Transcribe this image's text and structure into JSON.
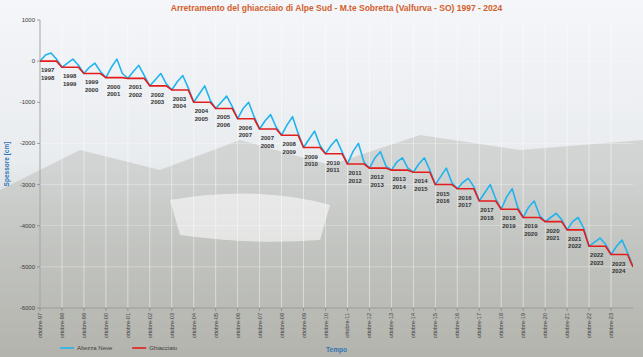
{
  "chart_data": {
    "type": "line",
    "title": "Arretramento del ghiacciaio di Alpe Sud - M.te Sobretta (Valfurva - SO) 1997 - 2024",
    "x_label": "Tempo",
    "y_label": "Spessore [cm]",
    "categories": [
      "ottobre-97",
      null,
      null,
      null,
      "ottobre-98",
      null,
      null,
      null,
      "ottobre-99",
      null,
      null,
      null,
      "ottobre-00",
      null,
      null,
      null,
      "ottobre-01",
      null,
      null,
      null,
      "ottobre-02",
      null,
      null,
      null,
      "ottobre-03",
      null,
      null,
      null,
      "ottobre-04",
      null,
      null,
      null,
      "ottobre-05",
      null,
      null,
      null,
      "ottobre-06",
      null,
      null,
      null,
      "ottobre-07",
      null,
      null,
      null,
      "ottobre-08",
      null,
      null,
      null,
      "ottobre-09",
      null,
      null,
      null,
      "ottobre-10",
      null,
      null,
      null,
      "ottobre-11",
      null,
      null,
      null,
      "ottobre-12",
      null,
      null,
      null,
      "ottobre-13",
      null,
      null,
      null,
      "ottobre-14",
      null,
      null,
      null,
      "ottobre-15",
      null,
      null,
      null,
      "ottobre-16",
      null,
      null,
      null,
      "ottobre-17",
      null,
      null,
      null,
      "ottobre-18",
      null,
      null,
      null,
      "ottobre-19",
      null,
      null,
      null,
      "ottobre-20",
      null,
      null,
      null,
      "ottobre-21",
      null,
      null,
      null,
      "ottobre-22",
      null,
      null,
      null,
      "ottobre-23",
      null,
      null,
      null,
      null
    ],
    "series": [
      {
        "name": "Altezza Neve",
        "color": "#1fb4ee",
        "values": [
          0,
          150,
          200,
          50,
          -150,
          -50,
          50,
          -100,
          -300,
          -150,
          -50,
          -250,
          -400,
          -150,
          50,
          -300,
          -420,
          -250,
          -100,
          -350,
          -600,
          -450,
          -300,
          -550,
          -700,
          -500,
          -350,
          -650,
          -1000,
          -800,
          -600,
          -950,
          -1150,
          -1000,
          -850,
          -1100,
          -1400,
          -1150,
          -1000,
          -1350,
          -1650,
          -1450,
          -1300,
          -1600,
          -1800,
          -1550,
          -1350,
          -1750,
          -2100,
          -1900,
          -1700,
          -2050,
          -2250,
          -2050,
          -1900,
          -2200,
          -2500,
          -2200,
          -2000,
          -2450,
          -2600,
          -2350,
          -2200,
          -2550,
          -2650,
          -2450,
          -2350,
          -2600,
          -2700,
          -2500,
          -2350,
          -2650,
          -3000,
          -2800,
          -2600,
          -2950,
          -3100,
          -2950,
          -2850,
          -3050,
          -3400,
          -3200,
          -3000,
          -3350,
          -3600,
          -3300,
          -3100,
          -3550,
          -3800,
          -3550,
          -3400,
          -3750,
          -3900,
          -3800,
          -3700,
          -3850,
          -4100,
          -3900,
          -3800,
          -4050,
          -4500,
          -4400,
          -4300,
          -4450,
          -4700,
          -4500,
          -4350,
          -4650,
          -5000
        ]
      },
      {
        "name": "Ghiacciaio",
        "color": "#e31c1c",
        "values": [
          0,
          0,
          0,
          0,
          -150,
          -150,
          -150,
          -150,
          -300,
          -300,
          -300,
          -300,
          -400,
          -400,
          -400,
          -400,
          -420,
          -420,
          -420,
          -420,
          -600,
          -600,
          -600,
          -600,
          -700,
          -700,
          -700,
          -700,
          -1000,
          -1000,
          -1000,
          -1000,
          -1150,
          -1150,
          -1150,
          -1150,
          -1400,
          -1400,
          -1400,
          -1400,
          -1650,
          -1650,
          -1650,
          -1650,
          -1800,
          -1800,
          -1800,
          -1800,
          -2100,
          -2100,
          -2100,
          -2100,
          -2250,
          -2250,
          -2250,
          -2250,
          -2500,
          -2500,
          -2500,
          -2500,
          -2600,
          -2600,
          -2600,
          -2600,
          -2650,
          -2650,
          -2650,
          -2650,
          -2700,
          -2700,
          -2700,
          -2700,
          -3000,
          -3000,
          -3000,
          -3000,
          -3100,
          -3100,
          -3100,
          -3100,
          -3400,
          -3400,
          -3400,
          -3400,
          -3600,
          -3600,
          -3600,
          -3600,
          -3800,
          -3800,
          -3800,
          -3800,
          -3900,
          -3900,
          -3900,
          -3900,
          -4100,
          -4100,
          -4100,
          -4100,
          -4500,
          -4500,
          -4500,
          -4500,
          -4700,
          -4700,
          -4700,
          -4700,
          -5000
        ]
      }
    ],
    "ylim": [
      -6000,
      1000
    ],
    "yticks": [
      -6000,
      -5000,
      -4000,
      -3000,
      -2000,
      -1000,
      0,
      1000
    ],
    "grid": true,
    "legend": "bottom-left",
    "annotations": [
      [
        "1997",
        "1998"
      ],
      [
        "1998",
        "1999"
      ],
      [
        "1999",
        "2000"
      ],
      [
        "2000",
        "2001"
      ],
      [
        "2001",
        "2002"
      ],
      [
        "2002",
        "2003"
      ],
      [
        "2003",
        "2004"
      ],
      [
        "2004",
        "2005"
      ],
      [
        "2005",
        "2006"
      ],
      [
        "2006",
        "2007"
      ],
      [
        "2007",
        "2008"
      ],
      [
        "2008",
        "2009"
      ],
      [
        "2009",
        "2010"
      ],
      [
        "2010",
        "2011"
      ],
      [
        "2011",
        "2012"
      ],
      [
        "2012",
        "2013"
      ],
      [
        "2013",
        "2014"
      ],
      [
        "2014",
        "2015"
      ],
      [
        "2015",
        "2016"
      ],
      [
        "2016",
        "2017"
      ],
      [
        "2017",
        "2018"
      ],
      [
        "2018",
        "2019"
      ],
      [
        "2019",
        "2020"
      ],
      [
        "2020",
        "2021"
      ],
      [
        "2021",
        "2022"
      ],
      [
        "2022",
        "2023"
      ],
      [
        "2023",
        "2024"
      ]
    ]
  }
}
